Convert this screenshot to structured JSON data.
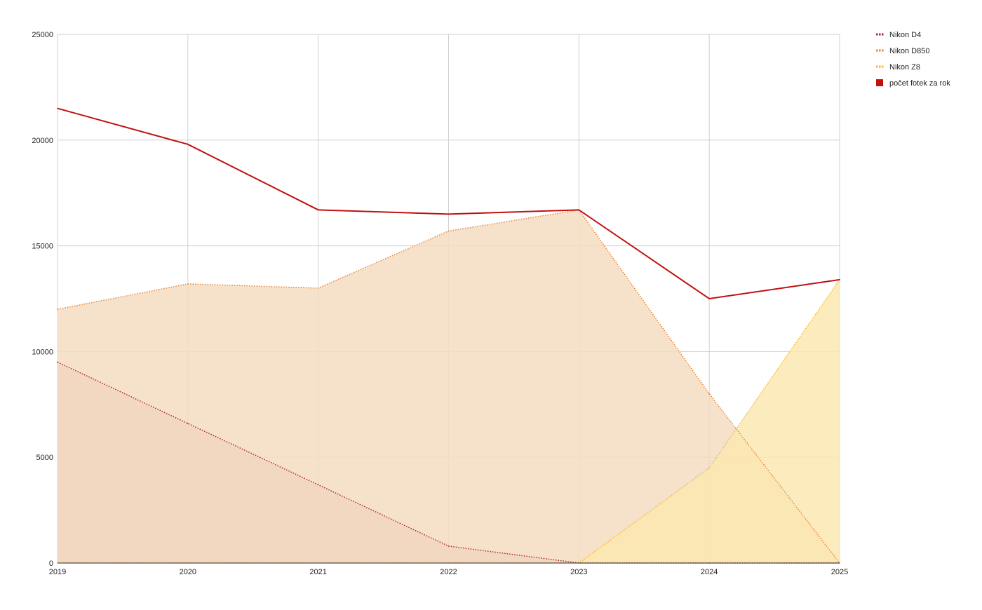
{
  "chart_data": {
    "type": "area",
    "x": [
      "2019",
      "2020",
      "2021",
      "2022",
      "2023",
      "2024",
      "2025"
    ],
    "ylim": [
      0,
      25000
    ],
    "yticks": [
      0,
      5000,
      10000,
      15000,
      20000,
      25000
    ],
    "grid": true,
    "legend_position": "top-right",
    "series": [
      {
        "name": "Nikon D4",
        "kind": "area",
        "color": "#a8273f",
        "fill": "#e0b6a6",
        "values": [
          9500,
          6600,
          3700,
          800,
          0,
          0,
          0
        ]
      },
      {
        "name": "Nikon D850",
        "kind": "area",
        "color": "#e8863a",
        "fill": "#f5dcc2",
        "values": [
          12000,
          13200,
          13000,
          15700,
          16700,
          8000,
          0
        ]
      },
      {
        "name": "Nikon Z8",
        "kind": "area",
        "color": "#f5b82e",
        "fill": "#fce7b0",
        "values": [
          0,
          0,
          0,
          0,
          0,
          4500,
          13400
        ]
      },
      {
        "name": "počet fotek za rok",
        "kind": "line",
        "color": "#c21010",
        "values": [
          21500,
          19800,
          16700,
          16500,
          16700,
          12500,
          13400
        ]
      }
    ]
  }
}
